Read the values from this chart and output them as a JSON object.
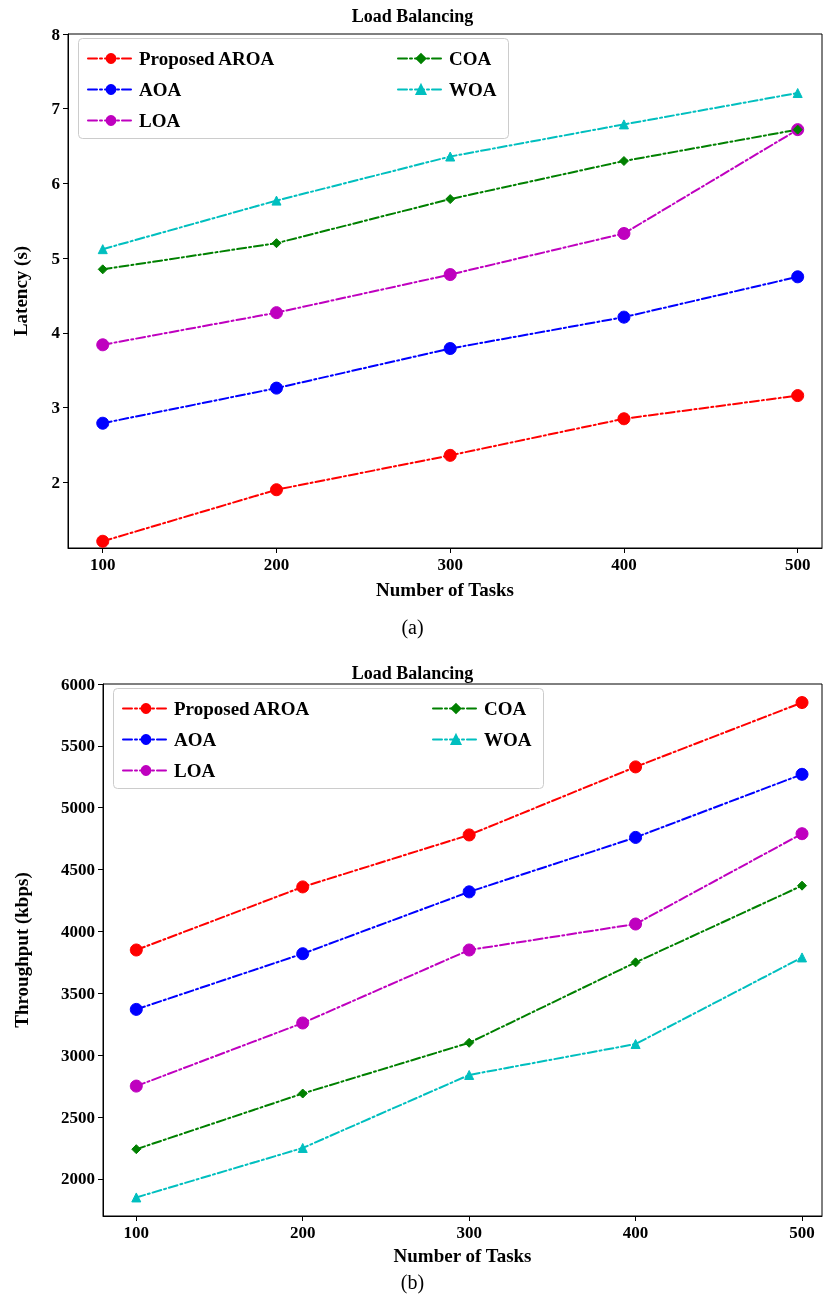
{
  "chart_data": [
    {
      "type": "line",
      "title": "Load Balancing",
      "xlabel": "Number of Tasks",
      "ylabel": "Latency (s)",
      "annotations": [
        "(a)"
      ],
      "x": [
        100,
        200,
        300,
        400,
        500
      ],
      "xlim": [
        80,
        514
      ],
      "xticks": [
        100,
        200,
        300,
        400,
        500
      ],
      "ylim": [
        1.12,
        8
      ],
      "yticks": [
        2,
        3,
        4,
        5,
        6,
        7,
        8
      ],
      "legend": "top left",
      "grid": false,
      "line_style": "dashdot",
      "series": [
        {
          "name": "Proposed AROA",
          "color": "#ff0000",
          "marker": "circle",
          "values": [
            1.21,
            1.9,
            2.36,
            2.85,
            3.16
          ]
        },
        {
          "name": "AOA",
          "color": "#0000ff",
          "marker": "circle",
          "values": [
            2.79,
            3.26,
            3.79,
            4.21,
            4.75
          ]
        },
        {
          "name": "LOA",
          "color": "#bf00bf",
          "marker": "circle",
          "values": [
            3.84,
            4.27,
            4.78,
            5.33,
            6.72
          ]
        },
        {
          "name": "COA",
          "color": "#008000",
          "marker": "diamond",
          "values": [
            4.85,
            5.2,
            5.79,
            6.3,
            6.72
          ]
        },
        {
          "name": "WOA",
          "color": "#00bfbf",
          "marker": "triangle",
          "values": [
            5.12,
            5.77,
            6.36,
            6.79,
            7.21
          ]
        }
      ]
    },
    {
      "type": "line",
      "title": "Load Balancing",
      "xlabel": "Number of Tasks",
      "ylabel": "Throughput (kbps)",
      "annotations": [
        "(b)"
      ],
      "x": [
        100,
        200,
        300,
        400,
        500
      ],
      "xlim": [
        80,
        512
      ],
      "xticks": [
        100,
        200,
        300,
        400,
        500
      ],
      "ylim": [
        1700,
        6000
      ],
      "yticks": [
        2000,
        2500,
        3000,
        3500,
        4000,
        4500,
        5000,
        5500,
        6000
      ],
      "legend": "top left",
      "grid": false,
      "line_style": "dashdot",
      "series": [
        {
          "name": "Proposed AROA",
          "color": "#ff0000",
          "marker": "circle",
          "values": [
            3850,
            4360,
            4780,
            5330,
            5850
          ]
        },
        {
          "name": "AOA",
          "color": "#0000ff",
          "marker": "circle",
          "values": [
            3370,
            3820,
            4320,
            4760,
            5270
          ]
        },
        {
          "name": "LOA",
          "color": "#bf00bf",
          "marker": "circle",
          "values": [
            2750,
            3260,
            3850,
            4060,
            4790
          ]
        },
        {
          "name": "COA",
          "color": "#008000",
          "marker": "diamond",
          "values": [
            2240,
            2690,
            3100,
            3750,
            4370
          ]
        },
        {
          "name": "WOA",
          "color": "#00bfbf",
          "marker": "triangle",
          "values": [
            1850,
            2250,
            2840,
            3090,
            3790
          ]
        }
      ]
    }
  ]
}
